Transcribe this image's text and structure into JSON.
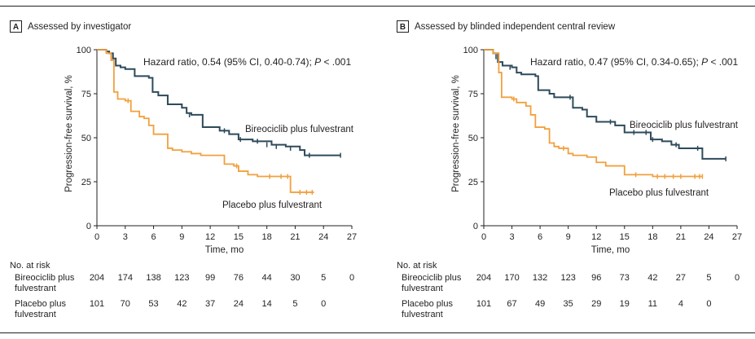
{
  "colors": {
    "treatment": "#2e4a5b",
    "placebo": "#f2a03d",
    "axis": "#231f20"
  },
  "panels": [
    {
      "letter": "A",
      "title": "Assessed by investigator",
      "hr_prefix": "Hazard ratio, 0.54 (95% CI, 0.40-0.74); ",
      "hr_p_label": "P",
      "hr_p_value": " < .001",
      "label_treatment": "Bireociclib plus fulvestrant",
      "label_placebo": "Placebo plus fulvestrant",
      "risk_header": "No. at risk",
      "risk_rows": [
        {
          "label_line1": "Bireociclib plus",
          "label_line2": "fulvestrant",
          "values": [
            "204",
            "174",
            "138",
            "123",
            "99",
            "76",
            "44",
            "30",
            "5",
            "0"
          ]
        },
        {
          "label_line1": "Placebo plus",
          "label_line2": "fulvestrant",
          "values": [
            "101",
            "70",
            "53",
            "42",
            "37",
            "24",
            "14",
            "5",
            "0"
          ]
        }
      ]
    },
    {
      "letter": "B",
      "title": "Assessed by blinded independent central review",
      "hr_prefix": "Hazard ratio, 0.47 (95% CI, 0.34-0.65); ",
      "hr_p_label": "P",
      "hr_p_value": " < .001",
      "label_treatment": "Bireociclib plus fulvestrant",
      "label_placebo": "Placebo plus fulvestrant",
      "risk_header": "No. at risk",
      "risk_rows": [
        {
          "label_line1": "Bireociclib plus",
          "label_line2": "fulvestrant",
          "values": [
            "204",
            "170",
            "132",
            "123",
            "96",
            "73",
            "42",
            "27",
            "5",
            "0"
          ]
        },
        {
          "label_line1": "Placebo plus",
          "label_line2": "fulvestrant",
          "values": [
            "101",
            "67",
            "49",
            "35",
            "29",
            "19",
            "11",
            "4",
            "0"
          ]
        }
      ]
    }
  ],
  "chart_data": [
    {
      "type": "line",
      "title": "Assessed by investigator",
      "xlabel": "Time, mo",
      "ylabel": "Progression-free survival, %",
      "xlim": [
        0,
        27
      ],
      "ylim": [
        0,
        100
      ],
      "xticks": [
        "0",
        "3",
        "6",
        "9",
        "12",
        "15",
        "18",
        "21",
        "24",
        "27"
      ],
      "yticks": [
        "0",
        "25",
        "50",
        "75",
        "100"
      ],
      "series": [
        {
          "name": "Bireociclib plus fulvestrant",
          "points": [
            [
              0,
              100
            ],
            [
              0.5,
              100
            ],
            [
              1,
              99
            ],
            [
              1.3,
              98
            ],
            [
              1.7,
              95
            ],
            [
              2,
              91
            ],
            [
              2.5,
              90
            ],
            [
              3,
              89
            ],
            [
              4,
              85
            ],
            [
              5.5,
              84
            ],
            [
              5.9,
              76
            ],
            [
              6.5,
              74
            ],
            [
              7.5,
              69
            ],
            [
              9,
              67
            ],
            [
              9.5,
              64
            ],
            [
              10,
              63
            ],
            [
              11.2,
              56
            ],
            [
              13,
              54
            ],
            [
              14,
              52
            ],
            [
              15,
              49
            ],
            [
              16.5,
              48
            ],
            [
              18.5,
              46
            ],
            [
              20,
              45
            ],
            [
              21.5,
              43
            ],
            [
              22,
              40
            ],
            [
              24,
              40
            ],
            [
              25.8,
              40
            ]
          ],
          "censored": [
            [
              1.5,
              96
            ],
            [
              9.8,
              63
            ],
            [
              13.5,
              54
            ],
            [
              15.2,
              49
            ],
            [
              17,
              48
            ],
            [
              18,
              46
            ],
            [
              19,
              45
            ],
            [
              20.5,
              44
            ],
            [
              22.5,
              40
            ],
            [
              25.8,
              40
            ]
          ]
        },
        {
          "name": "Placebo plus fulvestrant",
          "points": [
            [
              0,
              100
            ],
            [
              0.5,
              100
            ],
            [
              1,
              98
            ],
            [
              1.5,
              94
            ],
            [
              1.8,
              76
            ],
            [
              2.2,
              72
            ],
            [
              3,
              71
            ],
            [
              3.6,
              65
            ],
            [
              4.5,
              62
            ],
            [
              5,
              61
            ],
            [
              5.5,
              57
            ],
            [
              6,
              52
            ],
            [
              6.5,
              52
            ],
            [
              7.5,
              44
            ],
            [
              8,
              43
            ],
            [
              9,
              42
            ],
            [
              10,
              41
            ],
            [
              11,
              40
            ],
            [
              13.5,
              35
            ],
            [
              14.5,
              34
            ],
            [
              15,
              31
            ],
            [
              16,
              29
            ],
            [
              17,
              28
            ],
            [
              19,
              28
            ],
            [
              20.3,
              28
            ],
            [
              20.5,
              19
            ],
            [
              23,
              19
            ]
          ],
          "censored": [
            [
              3.3,
              71
            ],
            [
              14.8,
              34
            ],
            [
              18.3,
              28
            ],
            [
              19.5,
              28
            ],
            [
              20.2,
              28
            ],
            [
              21.5,
              19
            ],
            [
              22.2,
              19
            ],
            [
              22.8,
              19
            ]
          ]
        }
      ]
    },
    {
      "type": "line",
      "title": "Assessed by blinded independent central review",
      "xlabel": "Time, mo",
      "ylabel": "Progression-free survival, %",
      "xlim": [
        0,
        27
      ],
      "ylim": [
        0,
        100
      ],
      "xticks": [
        "0",
        "3",
        "6",
        "9",
        "12",
        "15",
        "18",
        "21",
        "24",
        "27"
      ],
      "yticks": [
        "0",
        "25",
        "50",
        "75",
        "100"
      ],
      "series": [
        {
          "name": "Bireociclib plus fulvestrant",
          "points": [
            [
              0,
              100
            ],
            [
              0.5,
              100
            ],
            [
              1,
              98
            ],
            [
              1.5,
              93
            ],
            [
              2,
              91
            ],
            [
              3,
              90
            ],
            [
              3.5,
              87
            ],
            [
              4,
              86
            ],
            [
              5.5,
              85
            ],
            [
              5.8,
              77
            ],
            [
              7,
              75
            ],
            [
              7.5,
              73
            ],
            [
              9.5,
              67
            ],
            [
              10.5,
              66
            ],
            [
              11,
              62
            ],
            [
              12,
              59
            ],
            [
              13,
              59
            ],
            [
              14,
              57
            ],
            [
              15,
              53
            ],
            [
              17.5,
              53
            ],
            [
              17.8,
              49
            ],
            [
              19,
              48
            ],
            [
              20,
              46
            ],
            [
              20.8,
              44
            ],
            [
              23,
              44
            ],
            [
              23.3,
              38
            ],
            [
              25.8,
              38
            ]
          ],
          "censored": [
            [
              1.3,
              96
            ],
            [
              2.8,
              90
            ],
            [
              9.2,
              73
            ],
            [
              13.5,
              59
            ],
            [
              16,
              53
            ],
            [
              17.3,
              53
            ],
            [
              18,
              49
            ],
            [
              20.5,
              46
            ],
            [
              22.8,
              44
            ],
            [
              25.8,
              38
            ]
          ]
        },
        {
          "name": "Placebo plus fulvestrant",
          "points": [
            [
              0,
              100
            ],
            [
              0.5,
              100
            ],
            [
              1,
              98
            ],
            [
              1.6,
              87
            ],
            [
              1.9,
              73
            ],
            [
              3,
              72
            ],
            [
              3.5,
              70
            ],
            [
              4.5,
              68
            ],
            [
              5,
              63
            ],
            [
              5.5,
              56
            ],
            [
              6.5,
              55
            ],
            [
              7,
              47
            ],
            [
              7.5,
              45
            ],
            [
              8,
              44
            ],
            [
              9,
              41
            ],
            [
              9.5,
              40
            ],
            [
              11,
              39
            ],
            [
              12,
              36
            ],
            [
              13,
              34
            ],
            [
              14.5,
              34
            ],
            [
              15,
              29
            ],
            [
              16.5,
              29
            ],
            [
              18,
              28
            ],
            [
              23.3,
              28
            ]
          ],
          "censored": [
            [
              3.2,
              72
            ],
            [
              8.5,
              44
            ],
            [
              16.2,
              29
            ],
            [
              18.5,
              28
            ],
            [
              19.3,
              28
            ],
            [
              20.2,
              28
            ],
            [
              21,
              28
            ],
            [
              22.5,
              28
            ],
            [
              23,
              28
            ],
            [
              23.3,
              28
            ]
          ]
        }
      ]
    }
  ]
}
